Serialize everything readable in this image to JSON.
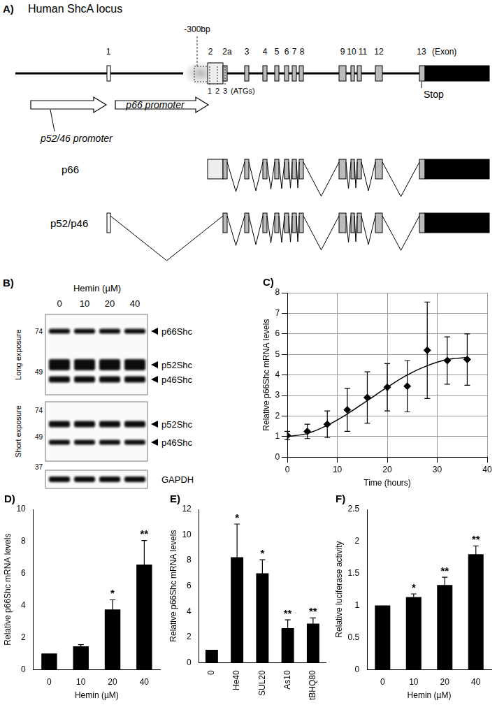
{
  "figure": {
    "panel_a": {
      "label": "A)",
      "title": "Human ShcA locus",
      "offset_label": "-300bp",
      "exons": [
        "1",
        "2",
        "2a",
        "3",
        "4",
        "5",
        "6",
        "7",
        "8",
        "9",
        "10",
        "11",
        "12",
        "13"
      ],
      "exon_caption": "(Exon)",
      "atgs": [
        "1",
        "2",
        "3"
      ],
      "atg_caption": "(ATGs)",
      "promoters": [
        "p52/46 promoter",
        "p66 promoter"
      ],
      "stop": "Stop",
      "transcripts": [
        "p66",
        "p52/p46"
      ]
    },
    "panel_b": {
      "label": "B)",
      "treatment": "Hemin (µM)",
      "lanes": [
        "0",
        "10",
        "20",
        "40"
      ],
      "blots": [
        {
          "caption": "Long exposure",
          "mw": [
            74,
            49
          ],
          "bands": [
            "p66Shc",
            "p52Shc",
            "p46Shc"
          ]
        },
        {
          "caption": "Short exposure",
          "mw": [
            74,
            49
          ],
          "bands": [
            "p52Shc",
            "p46Shc"
          ]
        },
        {
          "mw": [
            37
          ],
          "bands": [
            "GAPDH"
          ]
        }
      ]
    }
  },
  "chart_data": [
    {
      "title": "C)",
      "type": "scatter",
      "x_label": "Time (hours)",
      "y_label": "Relative p66Shc mRNA levels",
      "xlim": [
        0,
        40
      ],
      "xticks": [
        0,
        10,
        20,
        30,
        40
      ],
      "ylim": [
        0,
        8
      ],
      "yticks": [
        0,
        1,
        2,
        3,
        4,
        5,
        6,
        7,
        8
      ],
      "grid": true,
      "series": [
        {
          "type": "scatter",
          "marker": "diamond",
          "color": "#000000",
          "x": [
            0,
            4,
            8,
            12,
            16,
            20,
            24,
            28,
            32,
            36
          ],
          "values": [
            1.05,
            1.25,
            1.6,
            2.3,
            2.9,
            3.4,
            3.45,
            5.2,
            4.7,
            4.75
          ],
          "errors": [
            0.2,
            0.35,
            0.65,
            1.05,
            1.25,
            1.15,
            1.25,
            2.35,
            1.15,
            1.25
          ]
        },
        {
          "type": "line",
          "line_style": "solid",
          "color": "#000000",
          "x": [
            0,
            4,
            8,
            12,
            16,
            20,
            24,
            28,
            32,
            36
          ],
          "values": [
            1.0,
            1.15,
            1.55,
            2.1,
            2.75,
            3.4,
            4.0,
            4.45,
            4.75,
            4.85
          ]
        }
      ]
    },
    {
      "title": "D)",
      "type": "bar",
      "x_label": "Hemin (µM)",
      "y_label": "Relative p66Shc mRNA levels",
      "categories": [
        "0",
        "10",
        "20",
        "40"
      ],
      "values": [
        1,
        1.45,
        3.75,
        6.55
      ],
      "errors": [
        0,
        0.1,
        0.6,
        1.5
      ],
      "annotations": [
        null,
        null,
        "*",
        "**"
      ],
      "color": "#000000",
      "ylim": [
        0,
        10
      ],
      "yticks": [
        0,
        2,
        4,
        6,
        8,
        10
      ],
      "grid": false
    },
    {
      "title": "E)",
      "type": "bar",
      "y_label": "Relative p66Shc mRNA levels",
      "categories": [
        "0",
        "He40",
        "SUL20",
        "As10",
        "tBHQ80"
      ],
      "values": [
        1,
        8.25,
        7.0,
        2.7,
        3.05
      ],
      "errors": [
        0,
        2.6,
        1.05,
        0.65,
        0.45
      ],
      "annotations": [
        null,
        "*",
        "*",
        "**",
        "**"
      ],
      "color": "#000000",
      "ylim": [
        0,
        12
      ],
      "yticks": [
        0,
        2,
        4,
        6,
        8,
        10,
        12
      ],
      "grid": false
    },
    {
      "title": "F)",
      "type": "bar",
      "x_label": "Hemin (µM)",
      "y_label": "Relative luciferase activity",
      "categories": [
        "0",
        "10",
        "20",
        "40"
      ],
      "values": [
        1,
        1.13,
        1.32,
        1.8
      ],
      "errors": [
        0,
        0.05,
        0.12,
        0.13
      ],
      "annotations": [
        null,
        "*",
        "**",
        "**"
      ],
      "color": "#000000",
      "ylim": [
        0,
        2.5
      ],
      "yticks": [
        0,
        0.5,
        1,
        1.5,
        2,
        2.5
      ],
      "grid": false
    }
  ]
}
